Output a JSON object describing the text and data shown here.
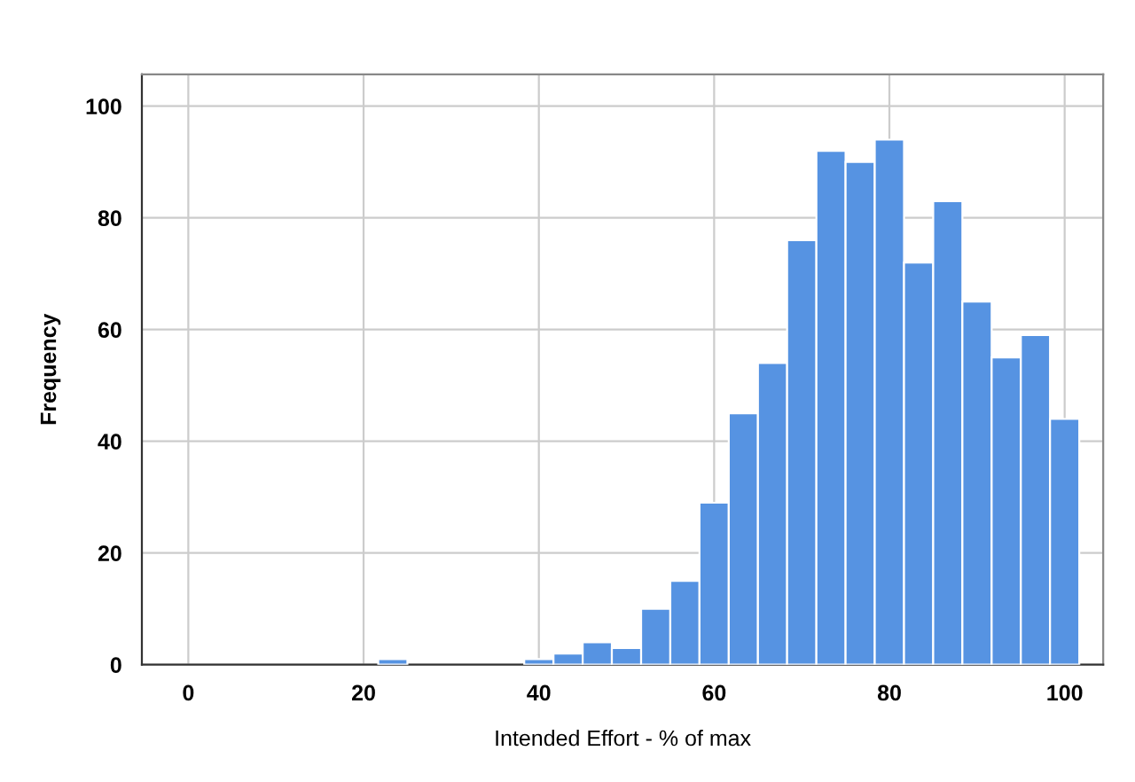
{
  "chart_data": {
    "type": "histogram",
    "xlabel": "Intended Effort - % of max",
    "ylabel": "Frequency",
    "bins": [
      21.67,
      25,
      28.33,
      31.67,
      35,
      38.33,
      41.67,
      45,
      48.33,
      51.67,
      55,
      58.33,
      61.67,
      65,
      68.33,
      71.67,
      75,
      78.33,
      81.67,
      85,
      88.33,
      91.67,
      95,
      98.33,
      101.67
    ],
    "values": [
      1,
      0,
      0,
      0,
      0,
      1,
      2,
      4,
      3,
      10,
      15,
      29,
      45,
      54,
      76,
      92,
      90,
      94,
      72,
      83,
      65,
      55,
      59,
      44
    ],
    "color": "#5693e2",
    "xlim": [
      -5.3,
      104.4
    ],
    "ylim": [
      0,
      105.7
    ],
    "xticks": [
      0,
      20,
      40,
      60,
      80,
      100
    ],
    "yticks": [
      0,
      20,
      40,
      60,
      80,
      100
    ],
    "grid": true
  }
}
